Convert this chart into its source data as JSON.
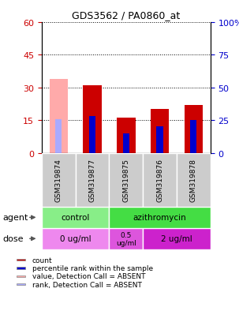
{
  "title": "GDS3562 / PA0860_at",
  "samples": [
    "GSM319874",
    "GSM319877",
    "GSM319875",
    "GSM319876",
    "GSM319878"
  ],
  "count_values": [
    0,
    31,
    16,
    20,
    22
  ],
  "count_absent": [
    34,
    0,
    0,
    0,
    0
  ],
  "percentile_values": [
    0,
    28,
    15,
    20,
    25
  ],
  "percentile_absent": [
    26,
    0,
    0,
    0,
    0
  ],
  "left_ylim": [
    0,
    60
  ],
  "right_ylim": [
    0,
    100
  ],
  "left_ticks": [
    0,
    15,
    30,
    45,
    60
  ],
  "right_ticks": [
    0,
    25,
    50,
    75,
    100
  ],
  "right_tick_labels": [
    "0",
    "25",
    "50",
    "75",
    "100%"
  ],
  "color_count": "#cc0000",
  "color_count_absent": "#ffaaaa",
  "color_pct": "#0000cc",
  "color_pct_absent": "#aaaaff",
  "color_agent_control": "#88ee88",
  "color_agent_azithromycin": "#44dd44",
  "color_dose_0": "#ee88ee",
  "color_dose_05": "#dd55dd",
  "color_dose_2": "#cc22cc",
  "legend_items": [
    {
      "color": "#cc0000",
      "label": "count"
    },
    {
      "color": "#0000cc",
      "label": "percentile rank within the sample"
    },
    {
      "color": "#ffaaaa",
      "label": "value, Detection Call = ABSENT"
    },
    {
      "color": "#aaaaff",
      "label": "rank, Detection Call = ABSENT"
    }
  ]
}
